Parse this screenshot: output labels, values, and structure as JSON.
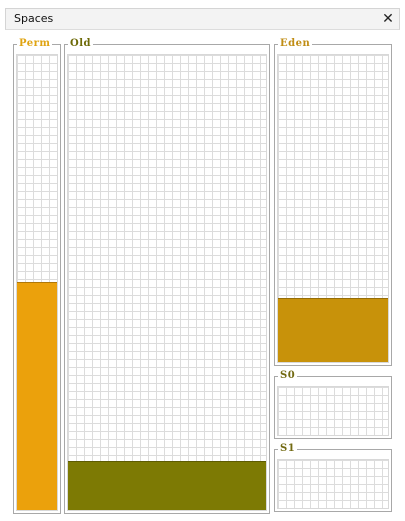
{
  "window": {
    "title": "Spaces",
    "close_symbol": "✕"
  },
  "spaces": {
    "perm": {
      "label": "Perm",
      "label_color": "#e0a412",
      "fill_color": "#eba10c",
      "used_fraction": 0.5
    },
    "old": {
      "label": "Old",
      "label_color": "#6d6a08",
      "fill_color": "#7d7a04",
      "used_fraction": 0.105
    },
    "eden": {
      "label": "Eden",
      "label_color": "#c08d14",
      "fill_color": "#c8920a",
      "used_fraction": 0.205
    },
    "s0": {
      "label": "S0",
      "label_color": "#726a12",
      "fill_color": "#c8920a",
      "used_fraction": 0
    },
    "s1": {
      "label": "S1",
      "label_color": "#726a12",
      "fill_color": "#c8920a",
      "used_fraction": 0
    }
  }
}
